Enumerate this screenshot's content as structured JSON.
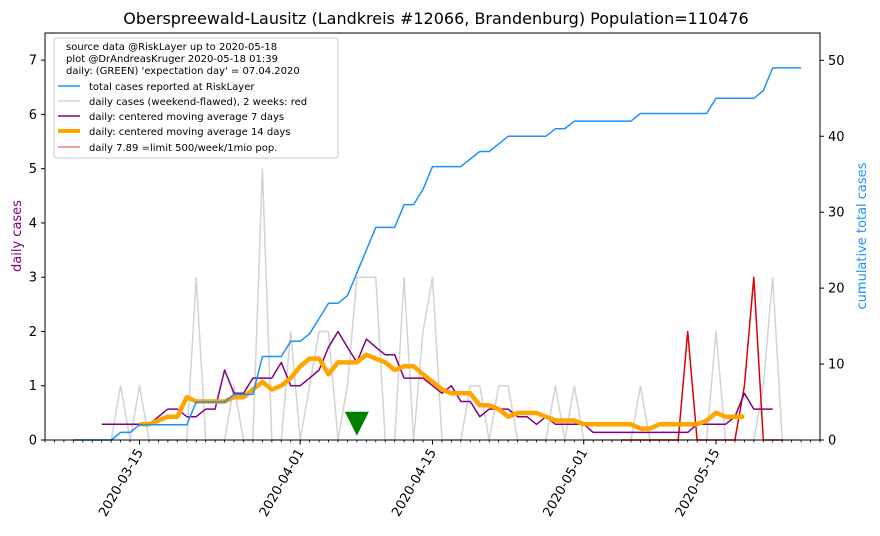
{
  "chart_data": {
    "type": "line",
    "title": "Oberspreewald-Lausitz (Landkreis #12066, Brandenburg) Population=110476",
    "ylabel_left": "daily cases",
    "ylabel_right": "cumulative total cases",
    "ylim_left": [
      0,
      7.5
    ],
    "ylim_right": [
      0,
      53.6
    ],
    "y_ticks_left": [
      0,
      1,
      2,
      3,
      4,
      5,
      6,
      7
    ],
    "y_ticks_right": [
      0,
      10,
      20,
      30,
      40,
      50
    ],
    "x_start": "2020-03-05",
    "x_end": "2020-05-26",
    "x_ticks": [
      "2020-03-15",
      "2020-04-01",
      "2020-04-15",
      "2020-05-01",
      "2020-05-15"
    ],
    "grid": false,
    "legend_position": "top-left",
    "info_lines": [
      "source data @RiskLayer up to 2020-05-18",
      "plot @DrAndreasKruger 2020-05-18 01:39",
      "daily: (GREEN) 'expectation day' = 07.04.2020"
    ],
    "legend": [
      {
        "label": "total cases reported at RiskLayer",
        "color": "#1e90ff",
        "width": 1.5
      },
      {
        "label": "daily cases (weekend-flawed), 2 weeks: red",
        "color": "#d3d3d3",
        "width": 1.5
      },
      {
        "label": "daily: centered moving average 7 days",
        "color": "#800080",
        "width": 1.5
      },
      {
        "label": "daily: centered moving average 14 days",
        "color": "#ffa500",
        "width": 4
      },
      {
        "label": "daily 7.89 =limit 500/week/1mio pop.",
        "color": "#f08080",
        "width": 1.5
      }
    ],
    "expectation_day": "2020-04-07",
    "colors": {
      "total": "#1e90ff",
      "daily": "#d3d3d3",
      "daily_recent": "#e00000",
      "ma7": "#800080",
      "ma14": "#ffa500",
      "marker": "#008000",
      "ylabel_left": "#800080",
      "ylabel_right": "#1e90ff"
    },
    "series": {
      "total": {
        "start": "2020-03-08",
        "values": [
          0,
          0,
          0,
          0,
          0,
          1,
          1,
          2,
          2,
          2,
          2,
          2,
          2,
          5,
          5,
          5,
          5,
          6,
          6,
          6,
          11,
          11,
          11,
          13,
          13,
          14,
          16,
          18,
          18,
          19,
          22,
          25,
          28,
          28,
          28,
          31,
          31,
          33,
          36,
          36,
          36,
          36,
          37,
          38,
          38,
          39,
          40,
          40,
          40,
          40,
          40,
          41,
          41,
          42,
          42,
          42,
          42,
          42,
          42,
          42,
          43,
          43,
          43,
          43,
          43,
          43,
          43,
          43,
          45,
          45,
          45,
          45,
          45,
          46,
          49,
          49,
          49,
          49
        ]
      },
      "daily": {
        "start": "2020-03-08",
        "values": [
          0,
          0,
          0,
          0,
          0,
          1,
          0,
          1,
          0,
          0,
          0,
          0,
          0,
          3,
          0,
          0,
          0,
          1,
          0,
          0,
          5,
          0,
          0,
          2,
          0,
          1,
          2,
          2,
          0,
          1,
          3,
          3,
          3,
          0,
          0,
          3,
          0,
          2,
          3,
          0,
          0,
          0,
          1,
          1,
          0,
          1,
          1,
          0,
          0,
          0,
          0,
          1,
          0,
          1,
          0,
          0,
          0,
          0,
          0,
          0,
          1,
          0,
          0,
          0,
          0,
          0,
          0,
          0,
          2,
          0,
          0,
          0,
          0,
          1,
          3,
          0,
          0,
          0
        ]
      },
      "daily_recent": {
        "start": "2020-05-05",
        "values": [
          0,
          0,
          0,
          0,
          0,
          0,
          0,
          2,
          0,
          0,
          0,
          0,
          0,
          1,
          3,
          0,
          0,
          0
        ]
      },
      "ma7": {
        "start": "2020-03-11",
        "values": [
          0.29,
          0.29,
          0.29,
          0.29,
          0.29,
          0.29,
          0.43,
          0.57,
          0.57,
          0.43,
          0.43,
          0.57,
          0.57,
          1.29,
          0.86,
          0.86,
          1.14,
          1.14,
          1.14,
          1.43,
          1.0,
          1.0,
          1.14,
          1.29,
          1.71,
          2.0,
          1.71,
          1.43,
          1.86,
          1.71,
          1.57,
          1.57,
          1.14,
          1.14,
          1.14,
          1.0,
          0.86,
          1.0,
          0.71,
          0.71,
          0.43,
          0.57,
          0.57,
          0.57,
          0.43,
          0.43,
          0.29,
          0.43,
          0.29,
          0.29,
          0.29,
          0.29,
          0.14,
          0.14,
          0.14,
          0.14,
          0.14,
          0.14,
          0.14,
          0.14,
          0.14,
          0.14,
          0.14,
          0.29,
          0.29,
          0.29,
          0.29,
          0.43,
          0.86,
          0.57,
          0.57,
          0.57
        ]
      },
      "ma14": {
        "start": "2020-03-15",
        "values": [
          0.29,
          0.29,
          0.36,
          0.43,
          0.43,
          0.79,
          0.71,
          0.71,
          0.71,
          0.71,
          0.79,
          0.79,
          0.93,
          1.07,
          0.93,
          1.0,
          1.14,
          1.36,
          1.5,
          1.5,
          1.21,
          1.43,
          1.43,
          1.43,
          1.57,
          1.5,
          1.43,
          1.29,
          1.36,
          1.36,
          1.21,
          1.07,
          0.93,
          0.86,
          0.86,
          0.86,
          0.64,
          0.64,
          0.57,
          0.43,
          0.5,
          0.5,
          0.5,
          0.43,
          0.36,
          0.36,
          0.36,
          0.29,
          0.29,
          0.29,
          0.29,
          0.29,
          0.29,
          0.21,
          0.21,
          0.29,
          0.29,
          0.29,
          0.29,
          0.29,
          0.36,
          0.5,
          0.43,
          0.43,
          0.43
        ]
      }
    }
  }
}
